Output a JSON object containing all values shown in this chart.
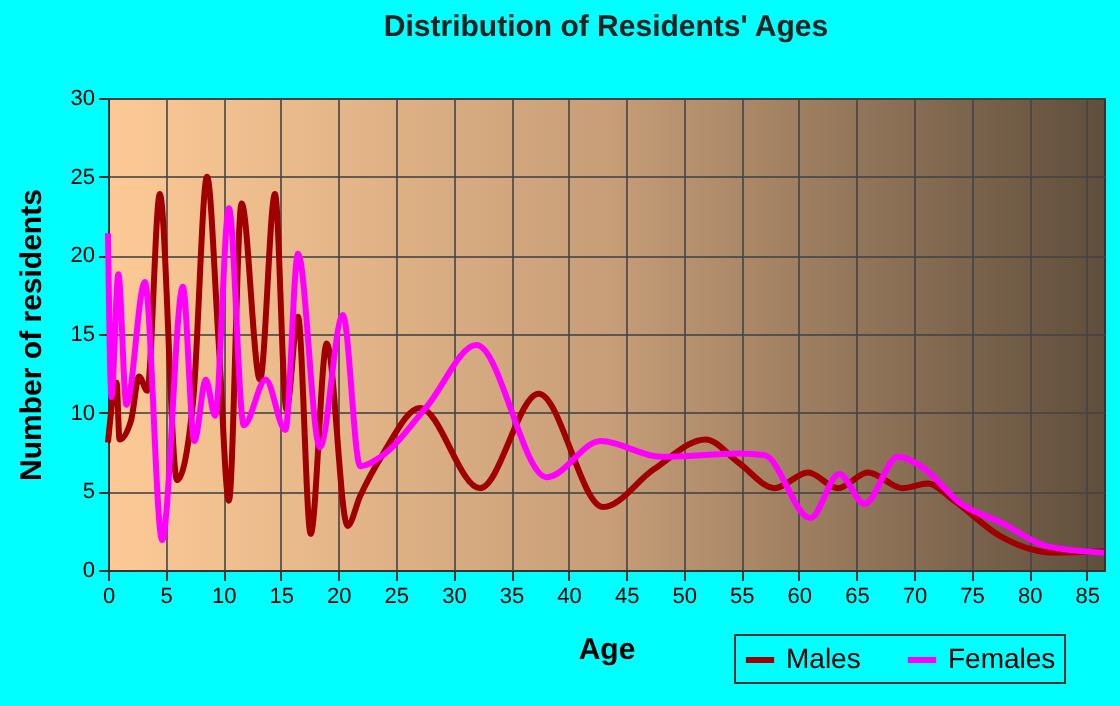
{
  "chart_data": {
    "type": "line",
    "title": "Distribution of Residents' Ages",
    "xlabel": "Age",
    "ylabel": "Number of residents",
    "xlim": [
      0,
      86.5
    ],
    "xticks": [
      0,
      5,
      10,
      15,
      20,
      25,
      30,
      35,
      40,
      45,
      50,
      55,
      60,
      65,
      70,
      75,
      80,
      85
    ],
    "ylim": [
      0,
      30
    ],
    "yticks": [
      0,
      5,
      10,
      15,
      20,
      25,
      30
    ],
    "grid": true,
    "legend": "bottom right",
    "series": [
      {
        "name": "Males",
        "color": "#a00000",
        "x": [
          0,
          0.75,
          1,
          2,
          2.7,
          3.4,
          4.5,
          6,
          7.4,
          8.6,
          9.6,
          10.5,
          11.6,
          13.2,
          14.5,
          15.5,
          16.5,
          17.6,
          19,
          20.8,
          21.9,
          23.9,
          27.1,
          32.3,
          37.4,
          43,
          47.4,
          51.9,
          54.8,
          57.9,
          60.8,
          63.4,
          66,
          69,
          71.2,
          73.5,
          77.6,
          82.2,
          86.5
        ],
        "values": [
          8.1,
          11.9,
          8.3,
          9.5,
          12.3,
          11.4,
          23.9,
          5.7,
          10.8,
          25,
          14.6,
          4.4,
          23.3,
          12.1,
          23.9,
          10.2,
          16.1,
          2.3,
          14.4,
          2.8,
          4.7,
          7.4,
          10.3,
          5.2,
          11.2,
          4,
          6.4,
          8.3,
          6.8,
          5.2,
          6.2,
          5.2,
          6.2,
          5.2,
          5.5,
          4.4,
          2.1,
          1.1,
          1.2
        ]
      },
      {
        "name": "Females",
        "color": "#ff00ff",
        "x": [
          0,
          0.3,
          0.9,
          1.6,
          3.2,
          4.7,
          6.5,
          7.5,
          8.5,
          9.3,
          10.5,
          11.8,
          13.7,
          15.4,
          16.5,
          18.4,
          20.4,
          21.9,
          23.7,
          27.7,
          32,
          38.1,
          42.8,
          48,
          54.9,
          57,
          61,
          63.5,
          65.7,
          68.6,
          70.6,
          74.1,
          77.6,
          81.6,
          86.5
        ],
        "values": [
          21.4,
          11,
          18.8,
          10.5,
          18.3,
          1.9,
          18,
          8.2,
          12.1,
          9.8,
          23,
          9.2,
          12.1,
          8.9,
          20.1,
          7.8,
          16.2,
          6.6,
          7.2,
          10.4,
          14.3,
          5.9,
          8.2,
          7.2,
          7.4,
          7.3,
          3.3,
          6.1,
          4.2,
          7.2,
          6.6,
          4.2,
          3,
          1.5,
          1.1
        ]
      }
    ]
  }
}
